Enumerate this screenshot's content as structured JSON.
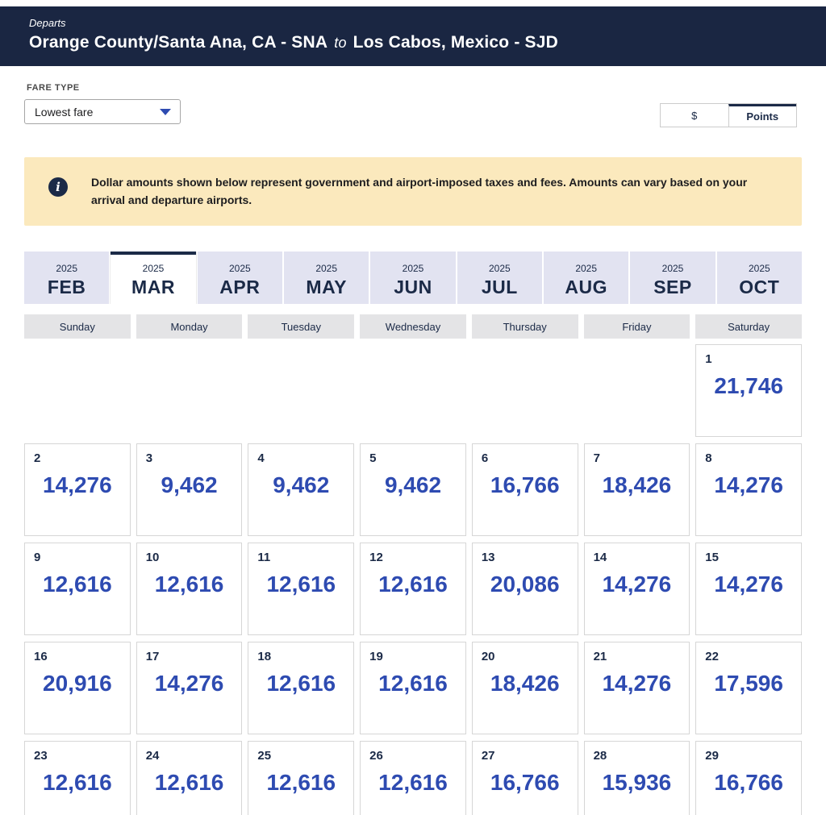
{
  "header": {
    "departs_label": "Departs",
    "origin": "Orange County/Santa Ana, CA - SNA",
    "to_label": "to",
    "destination": "Los Cabos, Mexico - SJD"
  },
  "fare_type": {
    "label": "FARE TYPE",
    "selected_option": "Lowest fare"
  },
  "currency_toggle": {
    "dollar_label": "$",
    "points_label": "Points",
    "selected": "Points"
  },
  "info_banner": {
    "icon_glyph": "i",
    "text": "Dollar amounts shown below represent government and airport-imposed taxes and fees. Amounts can vary based on your arrival and departure airports."
  },
  "month_tabs": [
    {
      "year": "2025",
      "month": "FEB",
      "selected": false
    },
    {
      "year": "2025",
      "month": "MAR",
      "selected": true
    },
    {
      "year": "2025",
      "month": "APR",
      "selected": false
    },
    {
      "year": "2025",
      "month": "MAY",
      "selected": false
    },
    {
      "year": "2025",
      "month": "JUN",
      "selected": false
    },
    {
      "year": "2025",
      "month": "JUL",
      "selected": false
    },
    {
      "year": "2025",
      "month": "AUG",
      "selected": false
    },
    {
      "year": "2025",
      "month": "SEP",
      "selected": false
    },
    {
      "year": "2025",
      "month": "OCT",
      "selected": false
    }
  ],
  "weekdays": [
    "Sunday",
    "Monday",
    "Tuesday",
    "Wednesday",
    "Thursday",
    "Friday",
    "Saturday"
  ],
  "calendar": {
    "weeks": [
      [
        null,
        null,
        null,
        null,
        null,
        null,
        {
          "day": "1",
          "fare": "21,746"
        }
      ],
      [
        {
          "day": "2",
          "fare": "14,276"
        },
        {
          "day": "3",
          "fare": "9,462"
        },
        {
          "day": "4",
          "fare": "9,462"
        },
        {
          "day": "5",
          "fare": "9,462"
        },
        {
          "day": "6",
          "fare": "16,766"
        },
        {
          "day": "7",
          "fare": "18,426"
        },
        {
          "day": "8",
          "fare": "14,276"
        }
      ],
      [
        {
          "day": "9",
          "fare": "12,616"
        },
        {
          "day": "10",
          "fare": "12,616"
        },
        {
          "day": "11",
          "fare": "12,616"
        },
        {
          "day": "12",
          "fare": "12,616"
        },
        {
          "day": "13",
          "fare": "20,086"
        },
        {
          "day": "14",
          "fare": "14,276"
        },
        {
          "day": "15",
          "fare": "14,276"
        }
      ],
      [
        {
          "day": "16",
          "fare": "20,916"
        },
        {
          "day": "17",
          "fare": "14,276"
        },
        {
          "day": "18",
          "fare": "12,616"
        },
        {
          "day": "19",
          "fare": "12,616"
        },
        {
          "day": "20",
          "fare": "18,426"
        },
        {
          "day": "21",
          "fare": "14,276"
        },
        {
          "day": "22",
          "fare": "17,596"
        }
      ],
      [
        {
          "day": "23",
          "fare": "12,616"
        },
        {
          "day": "24",
          "fare": "12,616"
        },
        {
          "day": "25",
          "fare": "12,616"
        },
        {
          "day": "26",
          "fare": "12,616"
        },
        {
          "day": "27",
          "fare": "16,766"
        },
        {
          "day": "28",
          "fare": "15,936"
        },
        {
          "day": "29",
          "fare": "16,766"
        }
      ]
    ]
  },
  "colors": {
    "header_navy": "#1a2642",
    "accent_navy": "#1b2a47",
    "fare_blue": "#2e4bb1",
    "banner_yellow": "#fbe9bd",
    "tab_lavender": "#e2e3f1"
  }
}
